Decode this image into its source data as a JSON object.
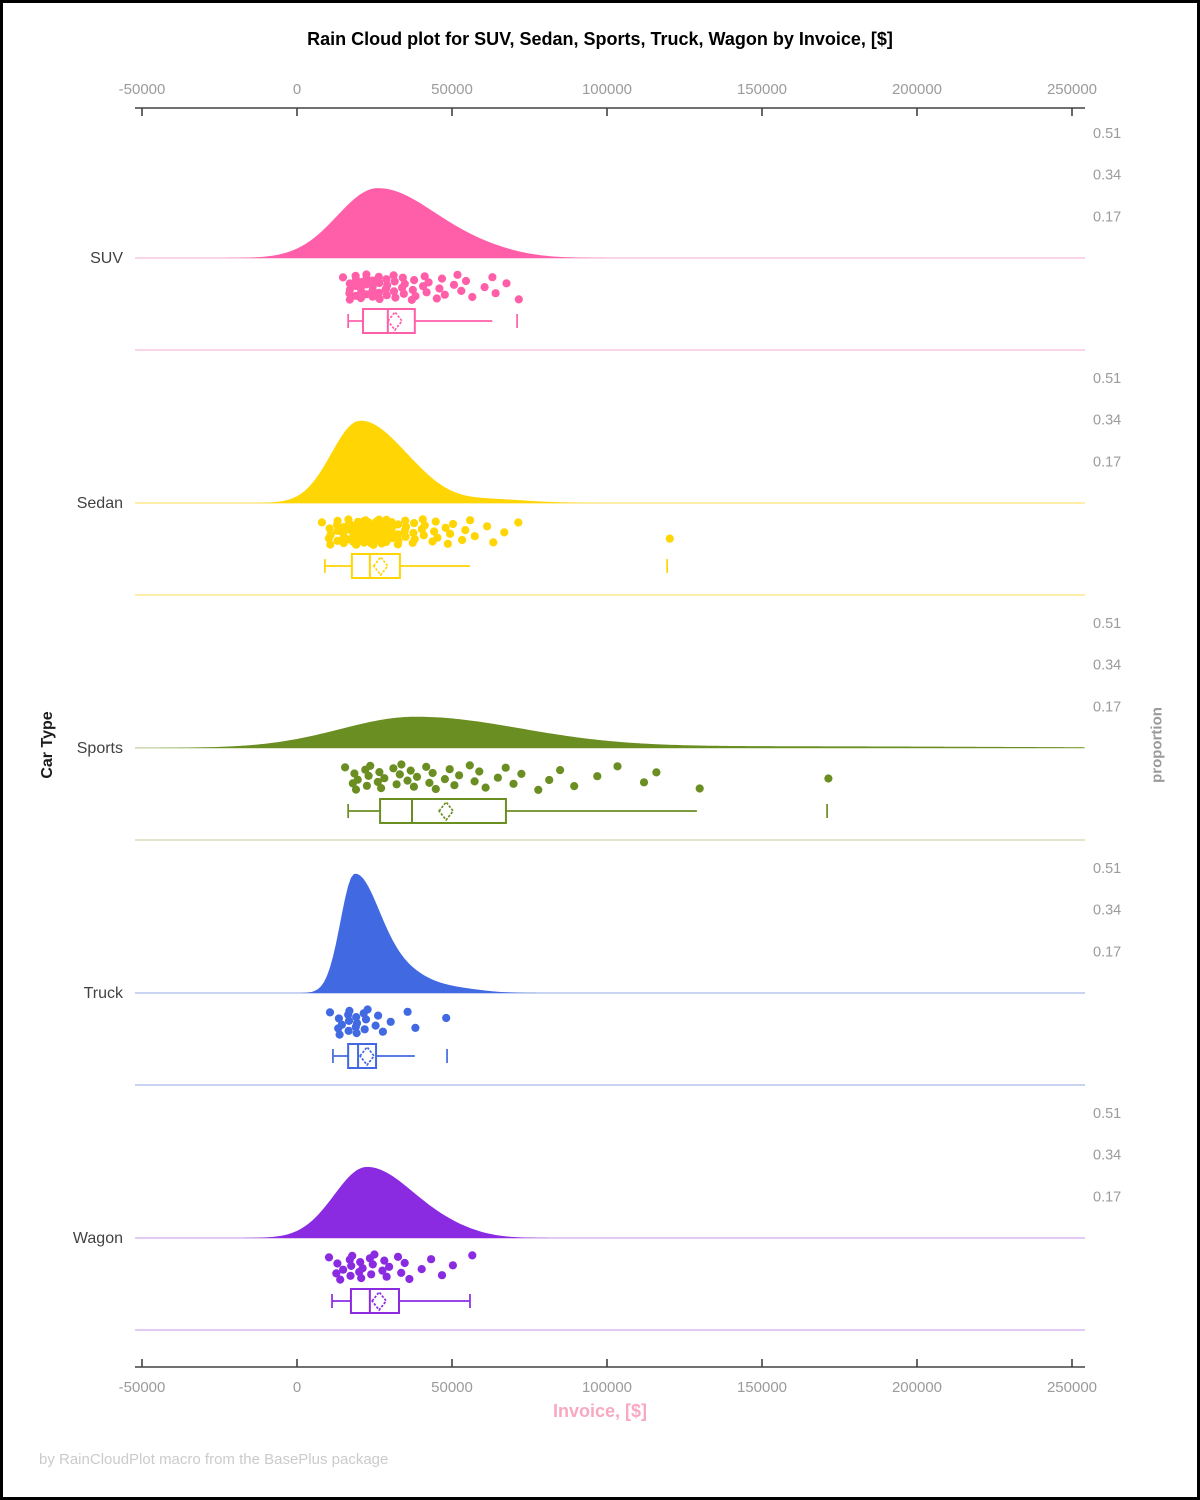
{
  "title": "Rain Cloud plot for SUV, Sedan, Sports, Truck, Wagon by Invoice, [$]",
  "footer_note": "by RainCloudPlot macro from the BasePlus package",
  "x_axis": {
    "label": "Invoice, [$]",
    "label_color": "#f8a9c2",
    "tick_values": [
      -50000,
      0,
      50000,
      100000,
      150000,
      200000,
      250000
    ],
    "tick_labels": [
      "-50000",
      "0",
      "50000",
      "100000",
      "150000",
      "200000",
      "250000"
    ]
  },
  "y_axis": {
    "label": "Car Type",
    "categories": [
      "SUV",
      "Sedan",
      "Sports",
      "Truck",
      "Wagon"
    ]
  },
  "right_axis": {
    "label": "proportion",
    "tick_values": [
      0.17,
      0.34,
      0.51
    ],
    "tick_labels": [
      "0.17",
      "0.34",
      "0.51"
    ]
  },
  "chart_data": {
    "type": "raincloud",
    "x_range": [
      -50000,
      250000
    ],
    "proportion_ticks": [
      0.17,
      0.34,
      0.51
    ],
    "groups": [
      {
        "name": "SUV",
        "color": "#FF5EA9",
        "light_color": "#F9C7DF",
        "density": {
          "peak_x": 26000,
          "peak_h": 0.285,
          "sigma_left": 13000,
          "sigma_right": 19000,
          "bumps": [
            [
              60000,
              0.018,
              12000
            ]
          ]
        },
        "box": {
          "whisker_low": 16500,
          "q1": 21300,
          "median": 29300,
          "mean": 31600,
          "q3": 38000,
          "whisker_high": 63000,
          "high_cap": false,
          "outliers": [
            71000
          ]
        },
        "points": [
          15800,
          16400,
          17000,
          17500,
          18000,
          18500,
          19000,
          19400,
          19800,
          20200,
          20600,
          21000,
          21400,
          21800,
          22200,
          22700,
          23200,
          23700,
          24200,
          24700,
          25200,
          25700,
          26200,
          26800,
          27400,
          28000,
          28600,
          29200,
          29800,
          30400,
          31000,
          31700,
          32400,
          33100,
          33800,
          34600,
          35400,
          36200,
          37000,
          37900,
          38800,
          39800,
          40800,
          41900,
          43000,
          44200,
          45500,
          46800,
          48200,
          49700,
          51300,
          53000,
          55000,
          57500,
          60000,
          63000,
          64500,
          68500,
          71000,
          28500
        ]
      },
      {
        "name": "Sedan",
        "color": "#FFD503",
        "light_color": "#FFE98E",
        "density": {
          "peak_x": 20000,
          "peak_h": 0.33,
          "sigma_left": 9000,
          "sigma_right": 13000,
          "bumps": [
            [
              38000,
              0.04,
              9000
            ],
            [
              62000,
              0.016,
              12000
            ]
          ]
        },
        "box": {
          "whisker_low": 9000,
          "q1": 17700,
          "median": 23500,
          "mean": 27000,
          "q3": 33200,
          "whisker_high": 55800,
          "high_cap": false,
          "outliers": [
            119400
          ]
        },
        "points": [
          9000,
          9800,
          10500,
          11200,
          11800,
          12400,
          13000,
          13500,
          14000,
          14500,
          15000,
          15400,
          15800,
          16200,
          16600,
          17000,
          17400,
          17800,
          18100,
          18400,
          18700,
          19000,
          19300,
          19600,
          19900,
          20200,
          20500,
          20800,
          21100,
          21400,
          21700,
          22000,
          22300,
          22600,
          22900,
          23200,
          23500,
          23800,
          24100,
          24400,
          24700,
          25000,
          25300,
          25600,
          26000,
          26400,
          26800,
          27200,
          27600,
          28000,
          28400,
          28800,
          29200,
          29600,
          30000,
          30500,
          31000,
          31500,
          32000,
          32500,
          33000,
          33600,
          34200,
          34800,
          35400,
          36000,
          36700,
          37400,
          38100,
          38800,
          39600,
          40400,
          41200,
          42000,
          43000,
          44000,
          45000,
          46000,
          47200,
          48400,
          49600,
          51000,
          52500,
          54000,
          56000,
          58000,
          60500,
          63000,
          67000,
          72000,
          119400,
          18550,
          19150,
          19750,
          20350,
          20950,
          21550,
          22150,
          22750,
          23350,
          23950,
          24550,
          25150,
          25750,
          26350,
          26950,
          27550,
          28150,
          28750,
          29350,
          29950
        ]
      },
      {
        "name": "Sports",
        "color": "#6B8E23",
        "light_color": "#D4DDBA",
        "density": {
          "peak_x": 38000,
          "peak_h": 0.125,
          "sigma_left": 24000,
          "sigma_right": 34000,
          "bumps": [
            [
              150000,
              0.007,
              80000
            ]
          ]
        },
        "box": {
          "whisker_low": 16500,
          "q1": 26800,
          "median": 37100,
          "mean": 48100,
          "q3": 67400,
          "whisker_high": 129000,
          "high_cap": false,
          "outliers": [
            171000
          ]
        },
        "points": [
          16500,
          17500,
          18500,
          19500,
          20500,
          21500,
          22500,
          23500,
          24500,
          25500,
          26500,
          27500,
          29000,
          30500,
          32000,
          33500,
          34500,
          35000,
          36500,
          38000,
          39500,
          41000,
          42500,
          44000,
          45500,
          47000,
          49000,
          51000,
          53000,
          55000,
          57000,
          59000,
          61500,
          64000,
          67000,
          70000,
          73000,
          77000,
          81000,
          85000,
          90000,
          96000,
          103000,
          112000,
          116500,
          129000,
          171000
        ]
      },
      {
        "name": "Truck",
        "color": "#4169E1",
        "light_color": "#B6C6EE",
        "density": {
          "peak_x": 18500,
          "peak_h": 0.475,
          "sigma_left": 4500,
          "sigma_right": 8000,
          "bumps": [
            [
              34000,
              0.075,
              8000
            ],
            [
              50000,
              0.02,
              9000
            ]
          ]
        },
        "box": {
          "whisker_low": 11600,
          "q1": 16500,
          "median": 19700,
          "mean": 22600,
          "q3": 25500,
          "whisker_high": 38000,
          "high_cap": false,
          "outliers": [
            48400
          ]
        },
        "points": [
          11600,
          12800,
          13500,
          14200,
          15400,
          16000,
          16600,
          17200,
          17800,
          18400,
          19000,
          19600,
          20200,
          20900,
          21700,
          22600,
          23600,
          24700,
          26000,
          28000,
          31000,
          35000,
          38000,
          48400
        ]
      },
      {
        "name": "Wagon",
        "color": "#8A2BE2",
        "light_color": "#D8B9F0",
        "density": {
          "peak_x": 22500,
          "peak_h": 0.29,
          "sigma_left": 10500,
          "sigma_right": 15500,
          "bumps": [
            [
              50000,
              0.015,
              9000
            ]
          ]
        },
        "box": {
          "whisker_low": 11300,
          "q1": 17400,
          "median": 23500,
          "mean": 26500,
          "q3": 32900,
          "whisker_high": 55800,
          "high_cap": true,
          "outliers": []
        },
        "points": [
          11300,
          12200,
          13000,
          14400,
          15800,
          16500,
          17200,
          17900,
          18700,
          19500,
          20300,
          21100,
          22000,
          22900,
          23800,
          24800,
          25800,
          26900,
          28000,
          29200,
          30500,
          31900,
          33400,
          35000,
          37000,
          39500,
          43000,
          47000,
          51000,
          55800
        ]
      }
    ]
  }
}
